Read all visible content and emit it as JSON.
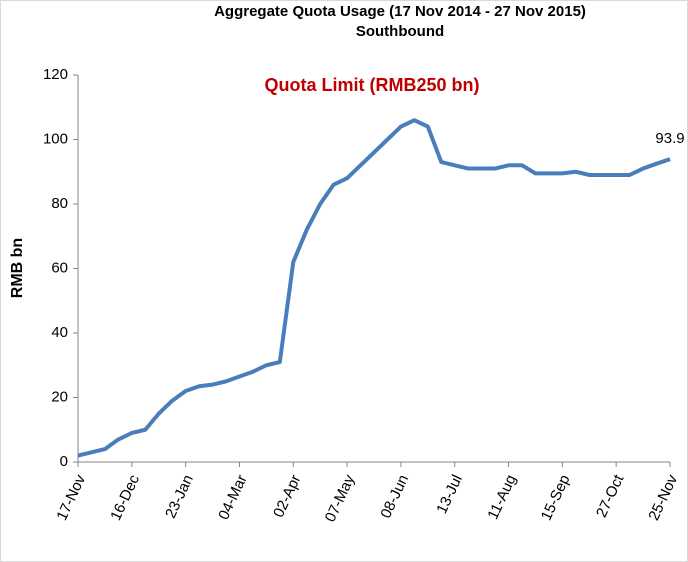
{
  "chart_data": {
    "type": "line",
    "title": "Aggregate Quota Usage (17 Nov 2014 - 27 Nov 2015)",
    "subtitle": "Southbound",
    "annotation": "Quota Limit (RMB250 bn)",
    "y_label": "RMB bn",
    "categories": [
      "17-Nov",
      null,
      null,
      null,
      "16-Dec",
      null,
      null,
      null,
      "23-Jan",
      null,
      null,
      null,
      "04-Mar",
      null,
      null,
      null,
      "02-Apr",
      null,
      null,
      null,
      "07-May",
      null,
      null,
      null,
      "08-Jun",
      null,
      null,
      null,
      "13-Jul",
      null,
      null,
      null,
      "11-Aug",
      null,
      null,
      null,
      "15-Sep",
      null,
      null,
      null,
      "27-Oct",
      null,
      null,
      null,
      "25-Nov"
    ],
    "series": [
      {
        "name": "Southbound",
        "color": "#4a7ebb",
        "values": [
          2,
          3,
          4,
          7,
          9,
          10,
          15,
          19,
          22,
          23.5,
          24,
          25,
          26.5,
          28,
          30,
          31,
          62,
          72,
          80,
          86,
          88,
          92,
          96,
          100,
          104,
          106,
          104,
          93,
          92,
          91,
          91,
          91,
          92,
          92,
          89.5,
          89.5,
          89.5,
          90,
          89,
          89,
          89,
          89,
          91,
          92.5,
          93.9
        ]
      }
    ],
    "ylim": [
      0,
      120
    ],
    "yticks": [
      0,
      20,
      40,
      60,
      80,
      100,
      120
    ],
    "grid": false
  }
}
